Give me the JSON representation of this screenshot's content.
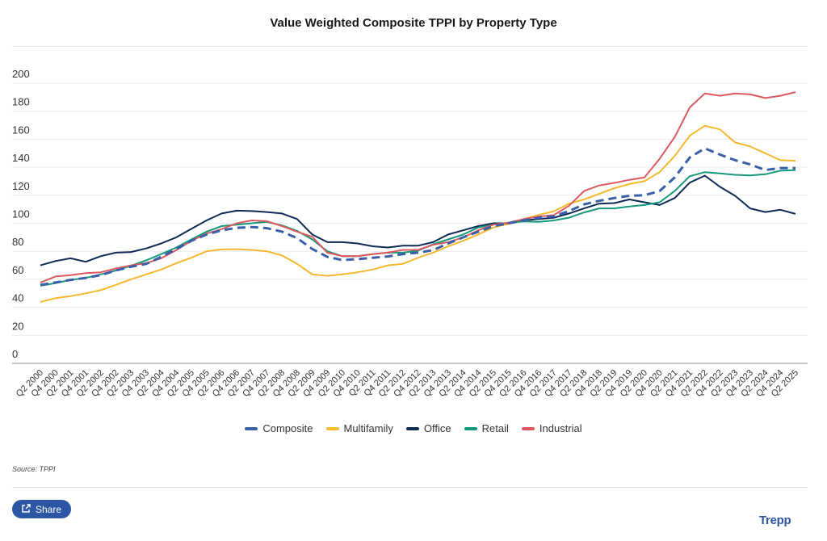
{
  "chart_data": {
    "type": "line",
    "title": "Value Weighted Composite TPPI by Property Type",
    "xlabel": "",
    "ylabel": "",
    "ylim": [
      0,
      200
    ],
    "yticks": [
      0,
      20,
      40,
      60,
      80,
      100,
      120,
      140,
      160,
      180,
      200
    ],
    "grid": true,
    "legend_position": "bottom",
    "categories": [
      "Q2 2000",
      "Q4 2000",
      "Q2 2001",
      "Q4 2001",
      "Q2 2002",
      "Q4 2002",
      "Q2 2003",
      "Q4 2003",
      "Q2 2004",
      "Q4 2004",
      "Q2 2005",
      "Q4 2005",
      "Q2 2006",
      "Q4 2006",
      "Q2 2007",
      "Q4 2007",
      "Q2 2008",
      "Q4 2008",
      "Q2 2009",
      "Q4 2009",
      "Q2 2010",
      "Q4 2010",
      "Q2 2011",
      "Q4 2011",
      "Q2 2012",
      "Q4 2012",
      "Q2 2013",
      "Q4 2013",
      "Q2 2014",
      "Q4 2014",
      "Q2 2015",
      "Q4 2015",
      "Q2 2016",
      "Q4 2016",
      "Q2 2017",
      "Q4 2017",
      "Q2 2018",
      "Q4 2018",
      "Q2 2019",
      "Q4 2019",
      "Q2 2020",
      "Q4 2020",
      "Q2 2021",
      "Q4 2021",
      "Q2 2022",
      "Q4 2022",
      "Q2 2023",
      "Q4 2023",
      "Q2 2024",
      "Q4 2024",
      "Q2 2025"
    ],
    "series": [
      {
        "name": "Composite",
        "color": "#3a5fa8",
        "dashed": true,
        "values": [
          56,
          57.7,
          59.6,
          61,
          63,
          66.3,
          69,
          71,
          76,
          81.7,
          87.5,
          92,
          95,
          96.7,
          97.3,
          96.5,
          94,
          89.4,
          81.7,
          76,
          73.7,
          74.4,
          75.4,
          76.3,
          78,
          79,
          80.8,
          85.6,
          90,
          94,
          98,
          100,
          102,
          104,
          105,
          108.7,
          113.5,
          116,
          118,
          119.6,
          120,
          123,
          132.7,
          147,
          153.5,
          149,
          145,
          142,
          138,
          139.4,
          139.4
        ]
      },
      {
        "name": "Multifamily",
        "color": "#f5b82e",
        "dashed": false,
        "values": [
          43.8,
          46.5,
          48,
          50,
          52.3,
          56,
          60,
          63.5,
          67,
          71.5,
          75.4,
          80,
          81.3,
          81.5,
          81,
          80,
          77,
          71,
          63.5,
          62.5,
          63.5,
          65,
          67,
          70,
          71,
          75.4,
          79,
          83.6,
          87.5,
          92,
          97,
          99.6,
          103,
          106,
          108.6,
          114,
          117,
          121,
          125,
          128,
          130,
          136.5,
          148,
          162.5,
          169.6,
          167,
          157.7,
          154.8,
          150,
          145,
          144.6
        ]
      },
      {
        "name": "Office",
        "color": "#0e2a55",
        "dashed": false,
        "values": [
          70,
          73,
          75,
          72.5,
          76.5,
          79,
          79.5,
          82,
          85.6,
          90,
          96,
          102,
          107,
          109,
          108.7,
          108,
          107,
          103,
          92,
          86.5,
          86.5,
          85.6,
          83.6,
          82.7,
          84,
          84,
          86.5,
          92,
          95,
          98,
          100,
          100,
          102,
          103,
          104,
          107,
          110.6,
          114,
          114.4,
          117,
          115,
          113,
          118,
          129,
          134,
          126,
          119.6,
          110.6,
          108,
          109.6,
          106.7
        ]
      },
      {
        "name": "Retail",
        "color": "#16997a",
        "dashed": false,
        "values": [
          55.4,
          57.3,
          59.6,
          61,
          63.5,
          66.3,
          69.6,
          73.5,
          78,
          82.7,
          88.5,
          94,
          98,
          99,
          100,
          101,
          98.5,
          94.6,
          88.5,
          80,
          76.5,
          76.5,
          78,
          79,
          79,
          80.4,
          85,
          88.5,
          92,
          97,
          99,
          100.4,
          101.3,
          101,
          102,
          104,
          107.7,
          110.6,
          110.6,
          112,
          113,
          115,
          123,
          133.6,
          136.5,
          135.6,
          134.6,
          134.2,
          135,
          137.5,
          138
        ]
      },
      {
        "name": "Industrial",
        "color": "#dc5a5f",
        "dashed": false,
        "values": [
          57.7,
          62,
          63,
          64.4,
          65,
          67.7,
          70,
          71.5,
          75,
          80.8,
          87.5,
          92.7,
          95.8,
          100,
          102,
          101.5,
          98,
          94,
          90.4,
          79,
          76.5,
          76.5,
          78,
          79,
          81,
          81,
          84.6,
          86.5,
          90,
          95,
          99,
          100.4,
          103,
          104.8,
          105.8,
          112.5,
          123,
          127,
          128.8,
          131,
          132.7,
          146,
          161.5,
          182.7,
          192.7,
          191,
          192.7,
          192,
          189.4,
          191,
          193.6
        ]
      }
    ]
  },
  "source": "Source: TPPI",
  "share_label": "Share",
  "share_icon": "share-icon",
  "logo": "Trepp"
}
